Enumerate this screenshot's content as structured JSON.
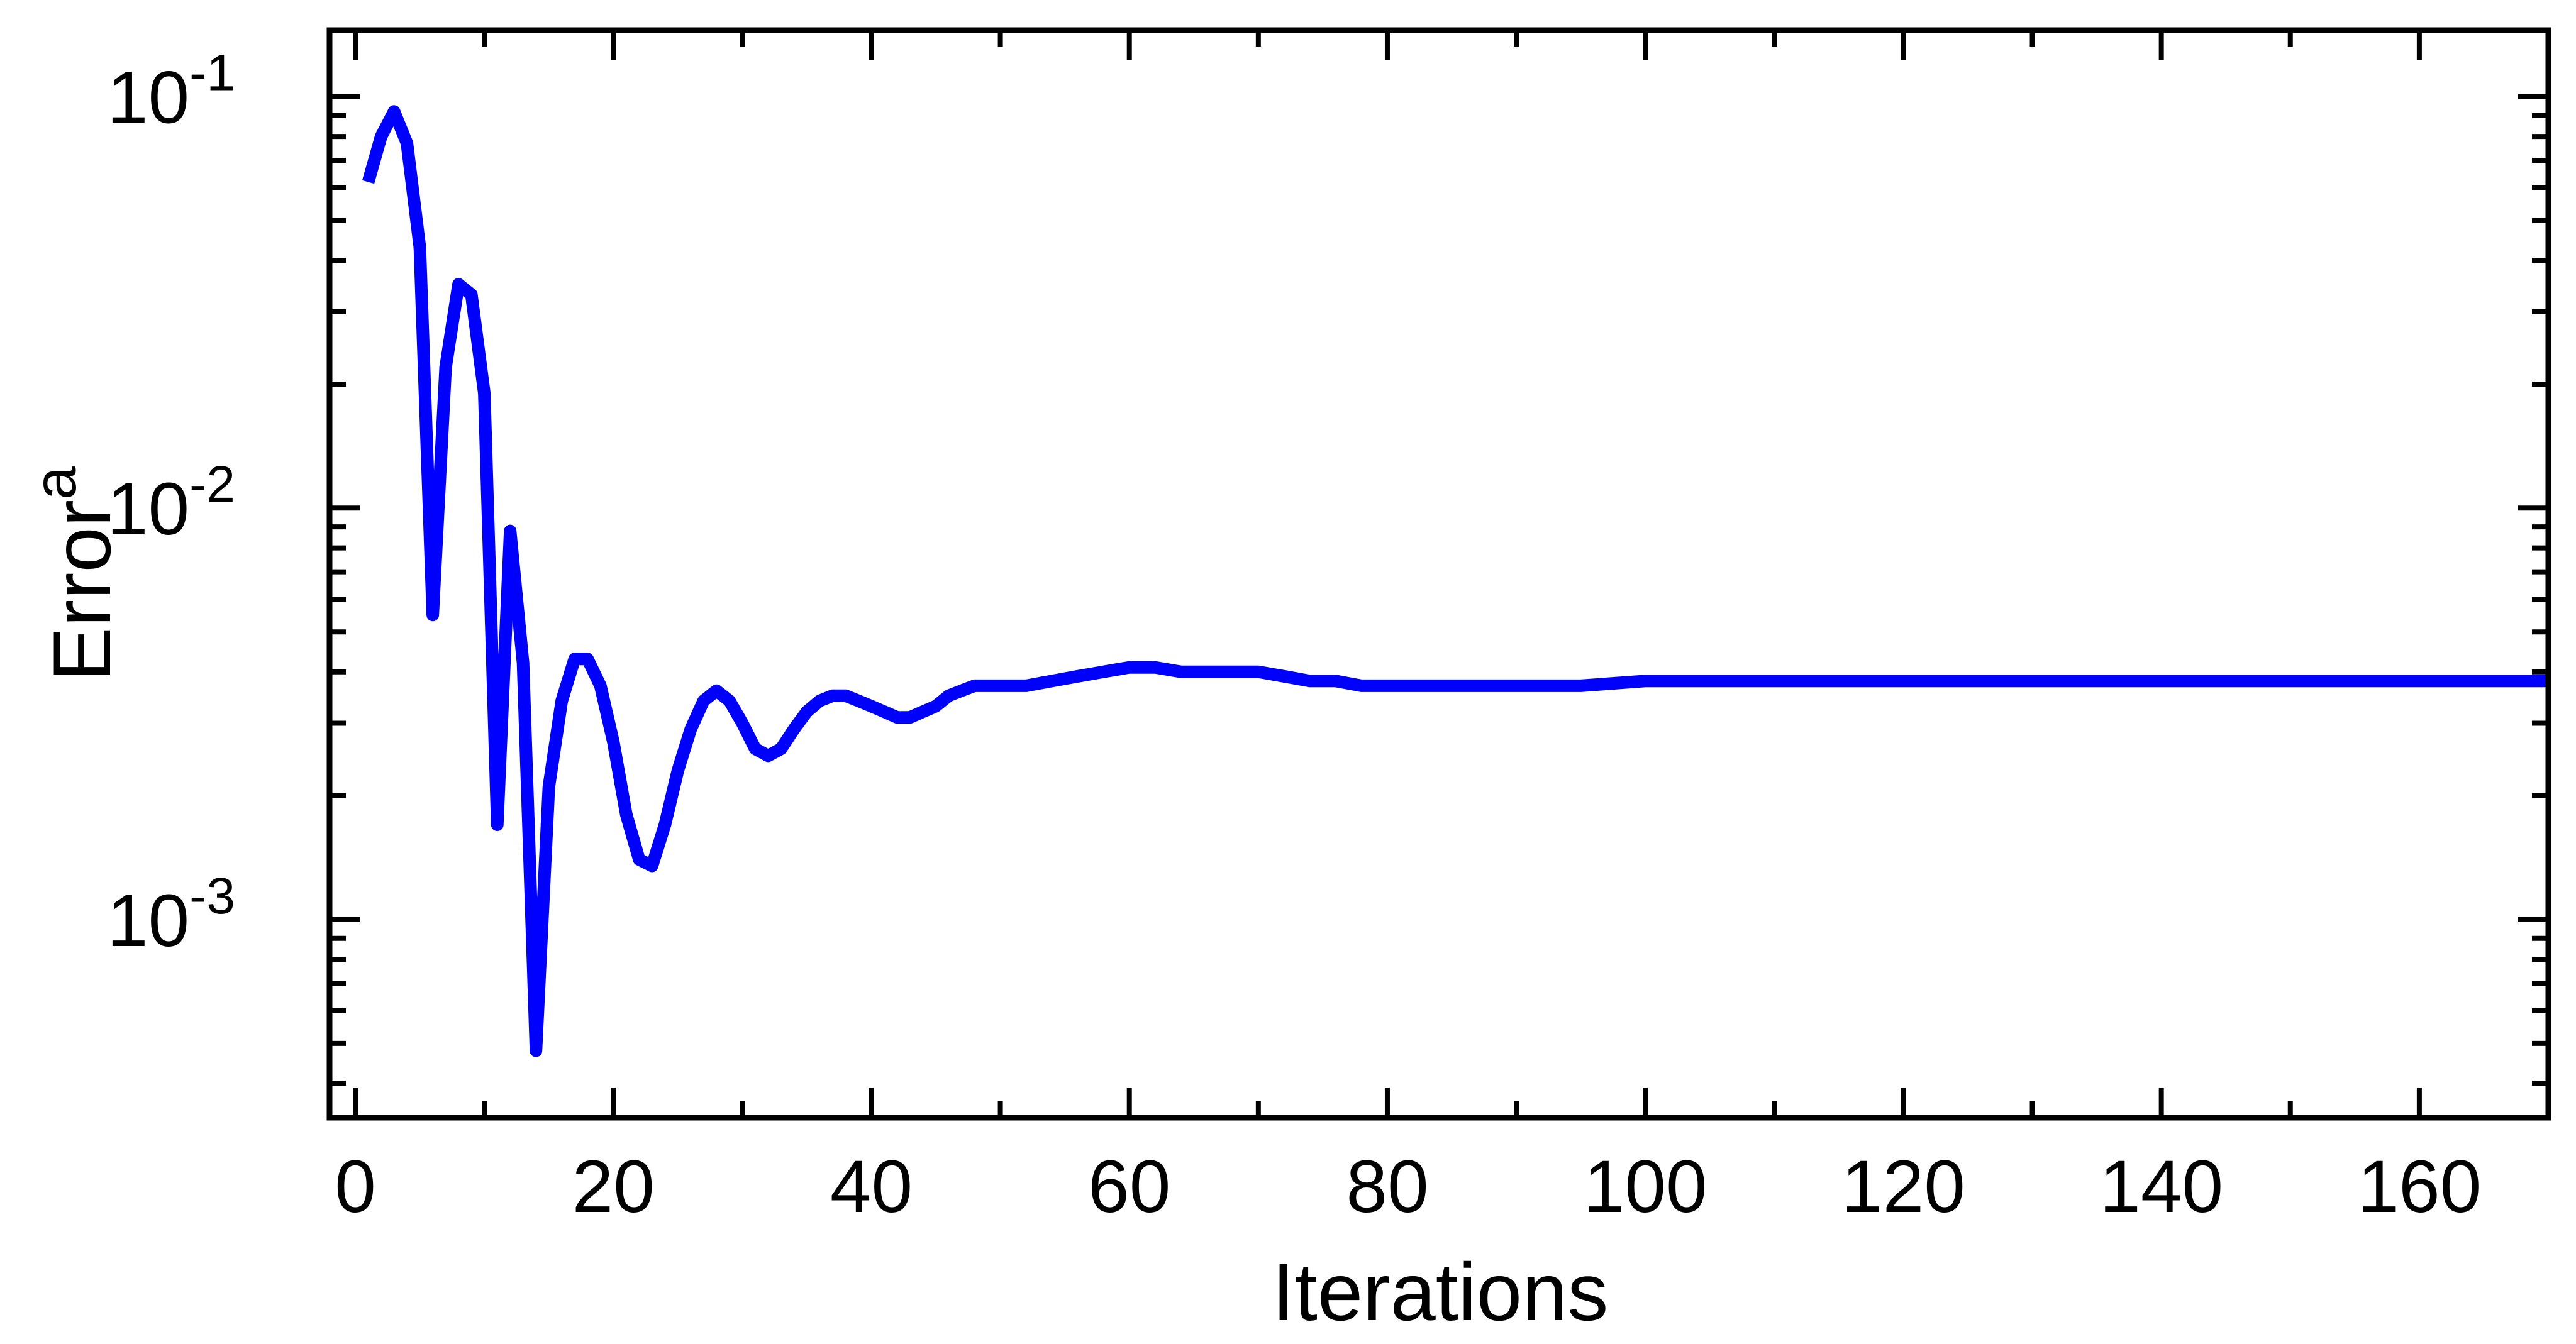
{
  "chart_data": {
    "type": "line",
    "title": "",
    "xlabel": "Iterations",
    "ylabel": "Error",
    "ylabel_superscript": "a",
    "xlim": [
      -2,
      170
    ],
    "ylim": [
      0.00033,
      0.145
    ],
    "yscale": "log",
    "grid": false,
    "legend": "none",
    "line_color": "#0000ff",
    "x_ticks": [
      {
        "value": 0,
        "label": "0"
      },
      {
        "value": 20,
        "label": "20"
      },
      {
        "value": 40,
        "label": "40"
      },
      {
        "value": 60,
        "label": "60"
      },
      {
        "value": 80,
        "label": "80"
      },
      {
        "value": 100,
        "label": "100"
      },
      {
        "value": 120,
        "label": "120"
      },
      {
        "value": 140,
        "label": "140"
      },
      {
        "value": 160,
        "label": "160"
      }
    ],
    "y_ticks": [
      {
        "value": 0.1,
        "base": "10",
        "exp": "-1"
      },
      {
        "value": 0.01,
        "base": "10",
        "exp": "-2"
      },
      {
        "value": 0.001,
        "base": "10",
        "exp": "-3"
      }
    ],
    "series": [
      {
        "x": [
          1,
          2,
          3,
          4,
          5,
          6,
          7,
          8,
          9,
          10,
          11,
          12,
          13,
          14,
          15,
          16,
          17,
          18,
          19,
          20,
          21,
          22,
          23,
          24,
          25,
          26,
          27,
          28,
          29,
          30,
          31,
          32,
          33,
          34,
          35,
          36,
          37,
          38,
          39,
          40,
          41,
          42,
          43,
          44,
          45,
          46,
          47,
          48,
          49,
          50,
          52,
          54,
          56,
          58,
          60,
          62,
          64,
          66,
          68,
          70,
          72,
          74,
          76,
          78,
          80,
          85,
          90,
          95,
          100,
          110,
          120,
          130,
          140,
          150,
          160,
          170
        ],
        "y": [
          0.062,
          0.08,
          0.092,
          0.077,
          0.043,
          0.0055,
          0.022,
          0.035,
          0.033,
          0.019,
          0.0017,
          0.0088,
          0.0042,
          0.00048,
          0.0021,
          0.0034,
          0.0043,
          0.0043,
          0.0037,
          0.0027,
          0.0018,
          0.0014,
          0.00135,
          0.0017,
          0.0023,
          0.0029,
          0.0034,
          0.0036,
          0.0034,
          0.003,
          0.0026,
          0.0025,
          0.0026,
          0.0029,
          0.0032,
          0.0034,
          0.0035,
          0.0035,
          0.0034,
          0.0033,
          0.0032,
          0.0031,
          0.0031,
          0.0032,
          0.0033,
          0.0035,
          0.0036,
          0.0037,
          0.0037,
          0.0037,
          0.0037,
          0.0038,
          0.0039,
          0.004,
          0.0041,
          0.0041,
          0.004,
          0.004,
          0.004,
          0.004,
          0.0039,
          0.0038,
          0.0038,
          0.0037,
          0.0037,
          0.0037,
          0.0037,
          0.0037,
          0.0038,
          0.0038,
          0.0038,
          0.0038,
          0.0038,
          0.0038,
          0.0038,
          0.0038
        ]
      }
    ]
  }
}
